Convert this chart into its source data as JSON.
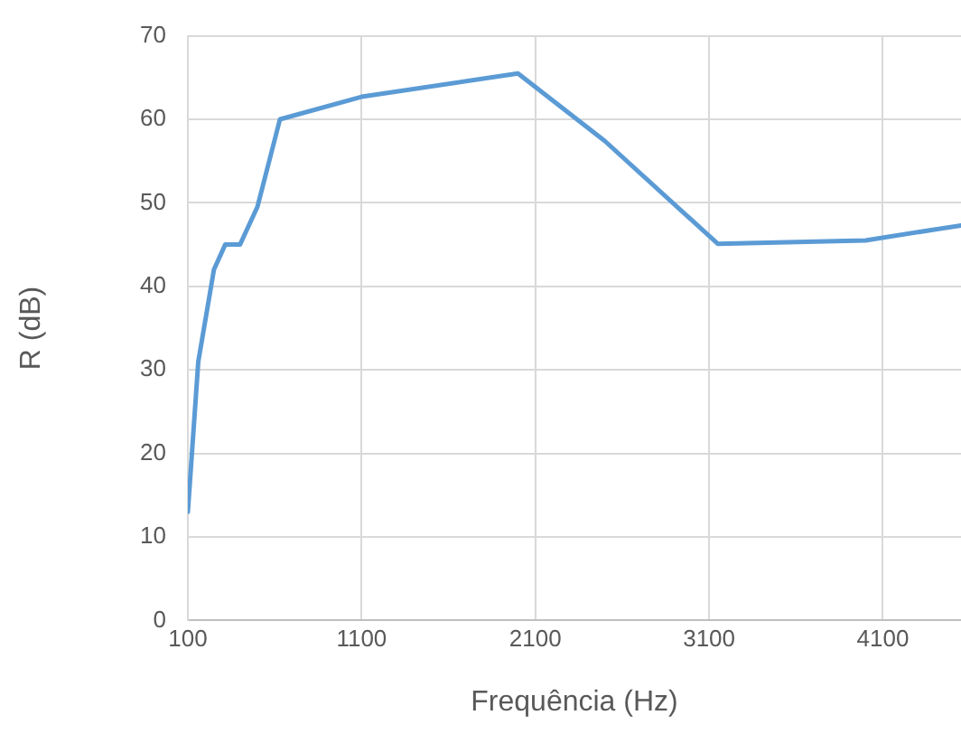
{
  "chart_data": {
    "type": "line",
    "xlabel": "Frequência (Hz)",
    "ylabel": "R (dB)",
    "x": [
      100,
      160,
      250,
      315,
      400,
      500,
      630,
      1100,
      2000,
      2500,
      3150,
      4000,
      4550
    ],
    "series": [
      {
        "color": "#5b9bd5",
        "values": [
          13,
          31,
          42,
          45,
          45,
          49.5,
          60,
          62.7,
          65.5,
          57.4,
          45.1,
          45.5,
          47.3
        ]
      }
    ],
    "xlim": [
      100,
      4550
    ],
    "xticks": [
      100,
      1100,
      2100,
      3100,
      4100
    ],
    "ylim": [
      0,
      70
    ],
    "yticks": [
      0,
      10,
      20,
      30,
      40,
      50,
      60,
      70
    ],
    "grid": true,
    "legend": false,
    "marker": "none",
    "line_style": "solid"
  }
}
